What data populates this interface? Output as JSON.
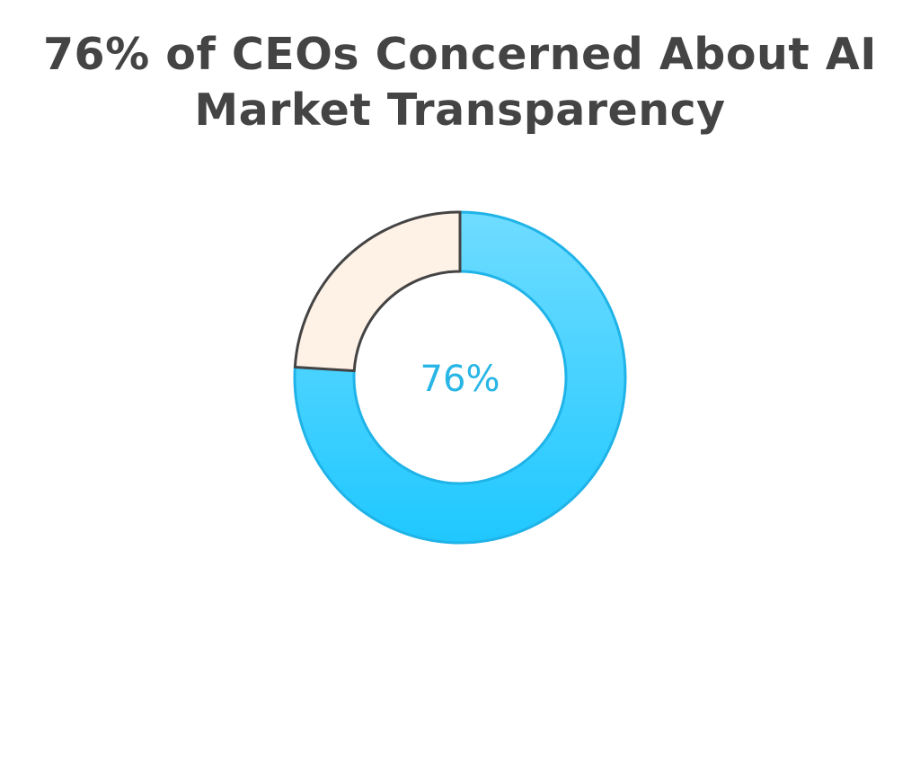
{
  "chart_data": {
    "type": "pie",
    "title": "76% of CEOs Concerned About AI Market Transparency",
    "center_label": "76%",
    "slices": [
      {
        "value": 76,
        "color": "#29c6f7"
      },
      {
        "value": 24,
        "color": "#fef1e6"
      }
    ],
    "colors": {
      "title": "#444444",
      "primary_gradient_top": "#6fdcff",
      "primary_gradient_bottom": "#1fc8ff",
      "primary_stroke": "#1fb3e8",
      "secondary_fill": "#fef1e6",
      "secondary_stroke": "#444444",
      "center_label": "#29b6e6"
    }
  }
}
